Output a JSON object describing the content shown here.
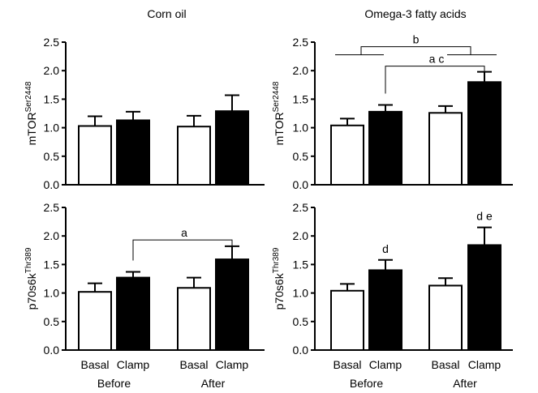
{
  "chart_data": [
    {
      "type": "bar",
      "panel": "top-left",
      "title": "Corn oil",
      "ylabel": "mTOR",
      "ylabel_superscript": "Ser2448",
      "ylim": [
        0,
        2.5
      ],
      "yticks": [
        "0.0",
        "0.5",
        "1.0",
        "1.5",
        "2.0",
        "2.5"
      ],
      "categories": [
        "Basal",
        "Clamp",
        "Basal",
        "Clamp"
      ],
      "groups": [],
      "fill": [
        "white",
        "black",
        "white",
        "black"
      ],
      "values": [
        1.03,
        1.13,
        1.02,
        1.29
      ],
      "errors": [
        0.17,
        0.15,
        0.19,
        0.28
      ],
      "annotations": []
    },
    {
      "type": "bar",
      "panel": "top-right",
      "title": "Omega-3 fatty acids",
      "ylabel": "mTOR",
      "ylabel_superscript": "Ser2448",
      "ylim": [
        0,
        2.5
      ],
      "yticks": [
        "0.0",
        "0.5",
        "1.0",
        "1.5",
        "2.0",
        "2.5"
      ],
      "categories": [
        "Basal",
        "Clamp",
        "Basal",
        "Clamp"
      ],
      "groups": [],
      "fill": [
        "white",
        "black",
        "white",
        "black"
      ],
      "values": [
        1.04,
        1.28,
        1.26,
        1.8
      ],
      "errors": [
        0.12,
        0.12,
        0.12,
        0.18
      ],
      "annotations": [
        {
          "label": "b",
          "type": "group-bracket",
          "from": [
            0,
            1
          ],
          "to": [
            2,
            3
          ],
          "level": 2.42
        },
        {
          "label": "a c",
          "type": "bracket",
          "from": 1,
          "to": 3,
          "level": 2.08
        }
      ]
    },
    {
      "type": "bar",
      "panel": "bottom-left",
      "title": "",
      "ylabel": "p70s6k",
      "ylabel_superscript": "Thr389",
      "ylim": [
        0,
        2.5
      ],
      "yticks": [
        "0.0",
        "0.5",
        "1.0",
        "1.5",
        "2.0",
        "2.5"
      ],
      "categories": [
        "Basal",
        "Clamp",
        "Basal",
        "Clamp"
      ],
      "groups": [
        "Before",
        "After"
      ],
      "fill": [
        "white",
        "black",
        "white",
        "black"
      ],
      "values": [
        1.02,
        1.27,
        1.09,
        1.59
      ],
      "errors": [
        0.15,
        0.1,
        0.18,
        0.23
      ],
      "annotations": [
        {
          "label": "a",
          "type": "bracket",
          "from": 1,
          "to": 3,
          "level": 1.93
        }
      ]
    },
    {
      "type": "bar",
      "panel": "bottom-right",
      "title": "",
      "ylabel": "p70s6k",
      "ylabel_superscript": "Thr389",
      "ylim": [
        0,
        2.5
      ],
      "yticks": [
        "0.0",
        "0.5",
        "1.0",
        "1.5",
        "2.0",
        "2.5"
      ],
      "categories": [
        "Basal",
        "Clamp",
        "Basal",
        "Clamp"
      ],
      "groups": [
        "Before",
        "After"
      ],
      "fill": [
        "white",
        "black",
        "white",
        "black"
      ],
      "values": [
        1.04,
        1.4,
        1.13,
        1.84
      ],
      "errors": [
        0.12,
        0.18,
        0.13,
        0.31
      ],
      "annotations": [
        {
          "label": "d",
          "type": "label",
          "bar": 1
        },
        {
          "label": "d e",
          "type": "label",
          "bar": 3
        }
      ]
    }
  ]
}
